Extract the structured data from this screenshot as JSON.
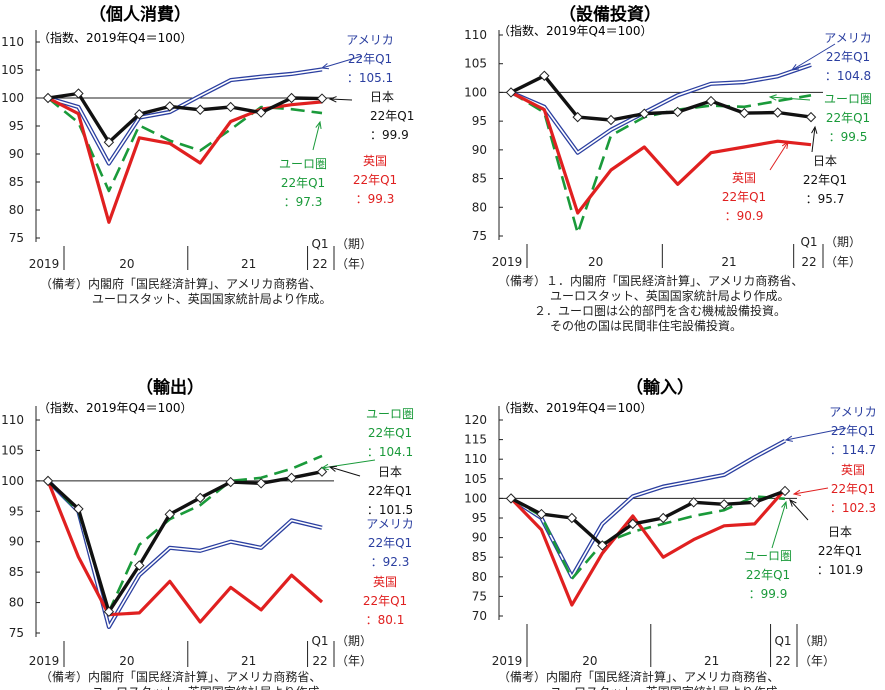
{
  "figure": {
    "panels": [
      {
        "title": "（個人消費）",
        "index_note": "（指数、2019年Q4＝100）",
        "notes": [
          "（備考）内閣府「国民経済計算」、アメリカ商務省、",
          "ユーロスタット、英国国家統計局より作成。"
        ],
        "callouts": [
          {
            "series": "アメリカ",
            "lines": [
              "アメリカ",
              "22年Q1",
              "：105.1"
            ],
            "color": "#2b3fa0"
          },
          {
            "series": "日本",
            "lines": [
              "日本",
              "22年Q1",
              "：99.9"
            ],
            "color": "#111111"
          },
          {
            "series": "ユーロ圏",
            "lines": [
              "ユーロ圏",
              "22年Q1",
              "：97.3"
            ],
            "color": "#1a9a3a"
          },
          {
            "series": "英国",
            "lines": [
              "英国",
              "22年Q1",
              "：99.3"
            ],
            "color": "#e02020"
          }
        ]
      },
      {
        "title": "（設備投資）",
        "index_note": "（指数、2019年Q4＝100）",
        "notes": [
          "（備考）１．内閣府「国民経済計算」、アメリカ商務省、",
          "ユーロスタット、英国国家統計局より作成。",
          "２．ユーロ圏は公的部門を含む機械設備投資。",
          "その他の国は民間非住宅設備投資。"
        ],
        "callouts": [
          {
            "series": "アメリカ",
            "lines": [
              "アメリカ",
              "22年Q1",
              "：104.8"
            ],
            "color": "#2b3fa0"
          },
          {
            "series": "ユーロ圏",
            "lines": [
              "ユーロ圏",
              "22年Q1",
              "：99.5"
            ],
            "color": "#1a9a3a"
          },
          {
            "series": "英国",
            "lines": [
              "英国",
              "22年Q1",
              "：90.9"
            ],
            "color": "#e02020"
          },
          {
            "series": "日本",
            "lines": [
              "日本",
              "22年Q1",
              "：95.7"
            ],
            "color": "#111111"
          }
        ]
      },
      {
        "title": "（輸出）",
        "index_note": "（指数、2019年Q4＝100）",
        "notes": [
          "（備考）内閣府「国民経済計算」、アメリカ商務省、",
          "ユーロスタット、英国国家統計局より作成。"
        ],
        "callouts": [
          {
            "series": "ユーロ圏",
            "lines": [
              "ユーロ圏",
              "22年Q1",
              "：104.1"
            ],
            "color": "#1a9a3a"
          },
          {
            "series": "日本",
            "lines": [
              "日本",
              "22年Q1",
              "：101.5"
            ],
            "color": "#111111"
          },
          {
            "series": "アメリカ",
            "lines": [
              "アメリカ",
              "22年Q1",
              "：92.3"
            ],
            "color": "#2b3fa0"
          },
          {
            "series": "英国",
            "lines": [
              "英国",
              "22年Q1",
              "：80.1"
            ],
            "color": "#e02020"
          }
        ]
      },
      {
        "title": "（輸入）",
        "index_note": "（指数、2019年Q4＝100）",
        "notes": [
          "（備考）内閣府「国民経済計算」、アメリカ商務省、",
          "ユーロスタット、英国国家統計局より作成。"
        ],
        "callouts": [
          {
            "series": "アメリカ",
            "lines": [
              "アメリカ",
              "22年Q1",
              "：114.7"
            ],
            "color": "#2b3fa0"
          },
          {
            "series": "英国",
            "lines": [
              "英国",
              "22年Q1",
              "：102.3"
            ],
            "color": "#e02020"
          },
          {
            "series": "ユーロ圏",
            "lines": [
              "ユーロ圏",
              "22年Q1",
              "：99.9"
            ],
            "color": "#1a9a3a"
          },
          {
            "series": "日本",
            "lines": [
              "日本",
              "22年Q1",
              "：101.9"
            ],
            "color": "#111111"
          }
        ]
      }
    ],
    "x_axis_labels": {
      "year_2019": "2019",
      "year_20": "20",
      "year_21": "21",
      "q1": "Q1",
      "y22": "22",
      "period": "（期）",
      "year": "（年）"
    }
  },
  "chart_data": [
    {
      "type": "line",
      "title": "（個人消費）",
      "ylabel": "（指数、2019年Q4＝100）",
      "ylim": [
        70,
        110
      ],
      "yticks": [
        75,
        80,
        85,
        90,
        95,
        100,
        105,
        110
      ],
      "reference_line": 100,
      "categories": [
        "2019Q4",
        "2020Q1",
        "2020Q2",
        "2020Q3",
        "2020Q4",
        "2021Q1",
        "2021Q2",
        "2021Q3",
        "2021Q4",
        "2022Q1"
      ],
      "series": [
        {
          "name": "アメリカ",
          "color": "#2b3fa0",
          "values": [
            100,
            98.4,
            88.3,
            96.5,
            97.5,
            100.4,
            103.2,
            103.8,
            104.3,
            105.1
          ]
        },
        {
          "name": "ユーロ圏",
          "color": "#1a9a3a",
          "values": [
            100,
            95.6,
            83.4,
            95.1,
            92.4,
            90.6,
            94.4,
            98.4,
            98.0,
            97.3
          ]
        },
        {
          "name": "英国",
          "color": "#e02020",
          "values": [
            100,
            97.2,
            77.8,
            92.9,
            91.9,
            88.4,
            95.8,
            98.0,
            98.8,
            99.3
          ]
        },
        {
          "name": "日本",
          "color": "#111111",
          "values": [
            100,
            100.8,
            92.1,
            97.1,
            98.5,
            97.9,
            98.4,
            97.4,
            100.0,
            99.9
          ]
        }
      ]
    },
    {
      "type": "line",
      "title": "（設備投資）",
      "ylabel": "（指数、2019年Q4＝100）",
      "ylim": [
        70,
        110
      ],
      "yticks": [
        75,
        80,
        85,
        90,
        95,
        100,
        105,
        110
      ],
      "reference_line": 100,
      "categories": [
        "2019Q4",
        "2020Q1",
        "2020Q2",
        "2020Q3",
        "2020Q4",
        "2021Q1",
        "2021Q2",
        "2021Q3",
        "2021Q4",
        "2022Q1"
      ],
      "series": [
        {
          "name": "アメリカ",
          "color": "#2b3fa0",
          "values": [
            100,
            97.5,
            89.5,
            93.5,
            96.5,
            99.5,
            101.5,
            101.8,
            102.8,
            104.8
          ]
        },
        {
          "name": "ユーロ圏",
          "color": "#1a9a3a",
          "values": [
            100,
            96.5,
            75.5,
            92.5,
            95.7,
            97.0,
            97.7,
            97.5,
            98.5,
            99.5
          ]
        },
        {
          "name": "英国",
          "color": "#e02020",
          "values": [
            100,
            97.0,
            79.0,
            86.5,
            90.5,
            84.0,
            89.5,
            90.5,
            91.5,
            90.9
          ]
        },
        {
          "name": "日本",
          "color": "#111111",
          "values": [
            100,
            102.9,
            95.7,
            95.2,
            96.3,
            96.6,
            98.5,
            96.4,
            96.5,
            95.7
          ]
        }
      ]
    },
    {
      "type": "line",
      "title": "（輸出）",
      "ylabel": "（指数、2019年Q4＝100）",
      "ylim": [
        70,
        110
      ],
      "yticks": [
        75,
        80,
        85,
        90,
        95,
        100,
        105,
        110
      ],
      "reference_line": 100,
      "categories": [
        "2019Q4",
        "2020Q1",
        "2020Q2",
        "2020Q3",
        "2020Q4",
        "2021Q1",
        "2021Q2",
        "2021Q3",
        "2021Q4",
        "2022Q1"
      ],
      "series": [
        {
          "name": "アメリカ",
          "color": "#2b3fa0",
          "values": [
            100,
            95.0,
            76.0,
            84.5,
            89.0,
            88.5,
            90.0,
            89.0,
            93.5,
            92.3
          ]
        },
        {
          "name": "ユーロ圏",
          "color": "#1a9a3a",
          "values": [
            100,
            95.0,
            78.5,
            89.5,
            93.7,
            96.0,
            100.0,
            100.5,
            102.0,
            104.1
          ]
        },
        {
          "name": "英国",
          "color": "#e02020",
          "values": [
            100,
            87.5,
            78.0,
            78.3,
            83.5,
            76.8,
            82.5,
            78.8,
            84.5,
            80.1
          ]
        },
        {
          "name": "日本",
          "color": "#111111",
          "values": [
            100,
            95.4,
            78.5,
            86.1,
            94.5,
            97.2,
            99.8,
            99.6,
            100.5,
            101.5
          ]
        }
      ]
    },
    {
      "type": "line",
      "title": "（輸入）",
      "ylabel": "（指数、2019年Q4＝100）",
      "ylim": [
        70,
        120
      ],
      "yticks": [
        70,
        75,
        80,
        85,
        90,
        95,
        100,
        105,
        110,
        115,
        120
      ],
      "reference_line": 100,
      "categories": [
        "2019Q4",
        "2020Q1",
        "2020Q2",
        "2020Q3",
        "2020Q4",
        "2021Q1",
        "2021Q2",
        "2021Q3",
        "2021Q4",
        "2022Q1"
      ],
      "series": [
        {
          "name": "アメリカ",
          "color": "#2b3fa0",
          "values": [
            100,
            95.0,
            80.0,
            93.5,
            100.5,
            103.0,
            104.5,
            106.0,
            110.5,
            114.7
          ]
        },
        {
          "name": "ユーロ圏",
          "color": "#1a9a3a",
          "values": [
            100,
            95.5,
            79.5,
            88.5,
            91.5,
            93.5,
            95.5,
            97.0,
            100.5,
            99.9
          ]
        },
        {
          "name": "英国",
          "color": "#e02020",
          "values": [
            100,
            92.0,
            72.8,
            86.0,
            95.5,
            85.0,
            89.5,
            93.0,
            93.5,
            102.3
          ]
        },
        {
          "name": "日本",
          "color": "#111111",
          "values": [
            100,
            96.0,
            95.0,
            88.0,
            93.5,
            95.0,
            99.0,
            98.5,
            99.0,
            101.9
          ]
        }
      ]
    }
  ]
}
